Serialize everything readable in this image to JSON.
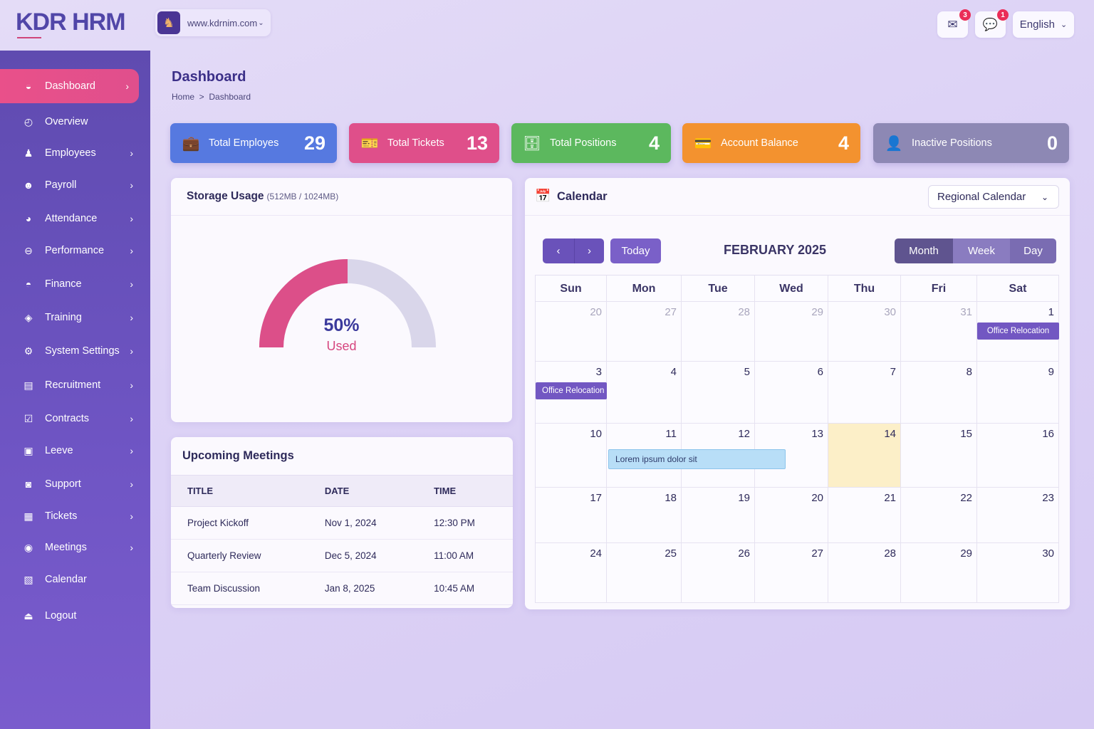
{
  "brand": "KDR HRM",
  "site": {
    "url": "www.kdrnim.com"
  },
  "topbar": {
    "mail_badge": "3",
    "chat_badge": "1",
    "language": "English"
  },
  "sidebar": {
    "items": [
      {
        "label": "Dashboard",
        "icon": "dashboard-icon",
        "glyph": "◒",
        "chev": true
      },
      {
        "label": "Overview",
        "icon": "overview-icon",
        "glyph": "◴",
        "chev": false
      },
      {
        "label": "Employees",
        "icon": "employees-icon",
        "glyph": "♟",
        "chev": true
      },
      {
        "label": "Payroll",
        "icon": "payroll-icon",
        "glyph": "☻",
        "chev": true
      },
      {
        "label": "Attendance",
        "icon": "attendance-icon",
        "glyph": "◕",
        "chev": true
      },
      {
        "label": "Performance",
        "icon": "performance-icon",
        "glyph": "⊖",
        "chev": true
      },
      {
        "label": "Finance",
        "icon": "finance-icon",
        "glyph": "◓",
        "chev": true
      },
      {
        "label": "Training",
        "icon": "training-icon",
        "glyph": "◈",
        "chev": true
      },
      {
        "label": "System Settings",
        "icon": "gear-icon",
        "glyph": "⚙",
        "chev": true
      },
      {
        "label": "Recruitment",
        "icon": "recruitment-icon",
        "glyph": "▤",
        "chev": true
      },
      {
        "label": "Contracts",
        "icon": "contracts-icon",
        "glyph": "☑",
        "chev": true
      },
      {
        "label": "Leeve",
        "icon": "leave-icon",
        "glyph": "▣",
        "chev": true
      },
      {
        "label": "Support",
        "icon": "support-icon",
        "glyph": "◙",
        "chev": true
      },
      {
        "label": "Tickets",
        "icon": "tickets-icon",
        "glyph": "▦",
        "chev": true
      },
      {
        "label": "Meetings",
        "icon": "meetings-icon",
        "glyph": "◉",
        "chev": true
      },
      {
        "label": "Calendar",
        "icon": "calendar-icon",
        "glyph": "▧",
        "chev": false
      },
      {
        "label": "Logout",
        "icon": "logout-icon",
        "glyph": "⏏",
        "chev": false
      }
    ]
  },
  "page": {
    "title": "Dashboard",
    "breadcrumb": [
      "Home",
      "Dashboard"
    ]
  },
  "stats": [
    {
      "label": "Total Employes",
      "value": "29",
      "color": "#5679e0",
      "glyph": "💼"
    },
    {
      "label": "Total Tickets",
      "value": "13",
      "color": "#df4f8a",
      "glyph": "🎫"
    },
    {
      "label": "Total Positions",
      "value": "4",
      "color": "#5cb85e",
      "glyph": "🗄"
    },
    {
      "label": "Account Balance",
      "value": "4",
      "color": "#f3922f",
      "glyph": "💳"
    },
    {
      "label": "Inactive Positions",
      "value": "0",
      "color": "#8d88b4",
      "glyph": "👤"
    }
  ],
  "storage": {
    "title": "Storage Usage",
    "detail": "(512MB / 1024MB)",
    "percent_label": "50%",
    "used_label": "Used",
    "percent": 50
  },
  "meetings": {
    "title": "Upcoming Meetings",
    "columns": [
      "TITLE",
      "DATE",
      "TIME"
    ],
    "rows": [
      [
        "Project Kickoff",
        "Nov 1, 2024",
        "12:30 PM"
      ],
      [
        "Quarterly Review",
        "Dec 5, 2024",
        "11:00 AM"
      ],
      [
        "Team Discussion",
        "Jan 8, 2025",
        "10:45 AM"
      ]
    ]
  },
  "calendar": {
    "title": "Calendar",
    "selector": "Regional Calendar",
    "today_label": "Today",
    "month_label": "FEBRUARY 2025",
    "views": [
      "Month",
      "Week",
      "Day"
    ],
    "active_view": "Month",
    "weekdays": [
      "Sun",
      "Mon",
      "Tue",
      "Wed",
      "Thu",
      "Fri",
      "Sat"
    ],
    "weeks": [
      [
        "20",
        "27",
        "28",
        "29",
        "30",
        "31",
        "1"
      ],
      [
        "3",
        "4",
        "5",
        "6",
        "7",
        "8",
        "9"
      ],
      [
        "10",
        "11",
        "12",
        "13",
        "14",
        "15",
        "16"
      ],
      [
        "17",
        "18",
        "19",
        "20",
        "21",
        "22",
        "23"
      ],
      [
        "24",
        "25",
        "26",
        "27",
        "28",
        "29",
        "30"
      ]
    ],
    "other_month_row0_cols": 6,
    "highlight": {
      "week": 2,
      "day": 4
    },
    "events": [
      {
        "title": "Office Relocation",
        "week": 0,
        "day": 6,
        "span": 1
      },
      {
        "title": "Office Relocation",
        "week": 1,
        "day": 0,
        "span": 1
      },
      {
        "title": "Lorem ipsum dolor sit",
        "week": 2,
        "day": 1,
        "span": 2.3
      }
    ]
  }
}
